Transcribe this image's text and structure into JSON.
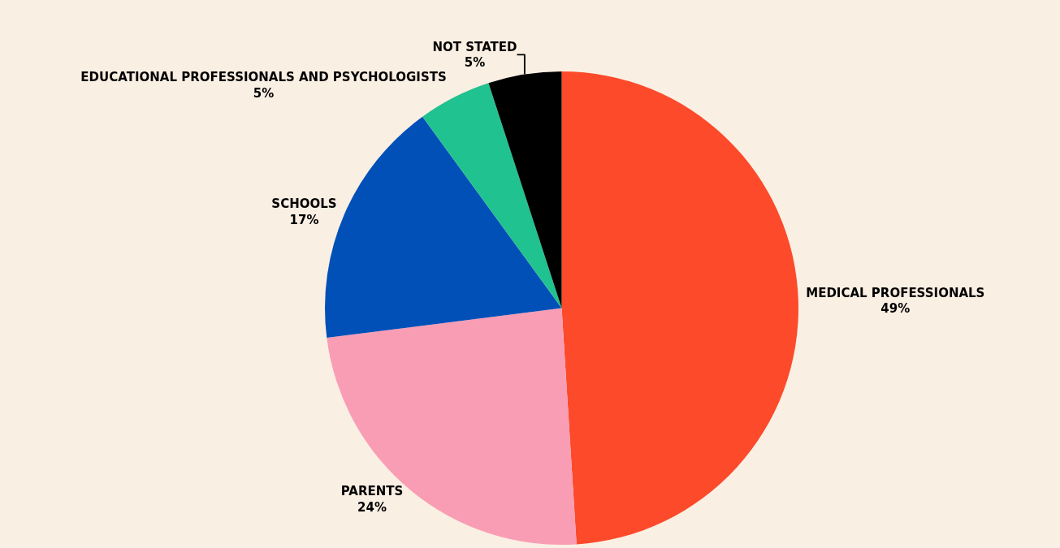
{
  "chart_data": {
    "type": "pie",
    "categories": [
      "MEDICAL PROFESSIONALS",
      "PARENTS",
      "SCHOOLS",
      "EDUCATIONAL PROFESSIONALS AND PSYCHOLOGISTS",
      "NOT STATED"
    ],
    "values": [
      49,
      24,
      17,
      5,
      5
    ],
    "value_labels": [
      "49%",
      "24%",
      "17%",
      "5%",
      "5%"
    ],
    "colors": [
      "#fc4a2a",
      "#f99db5",
      "#0050b8",
      "#20c290",
      "#000000"
    ],
    "legend": false
  }
}
